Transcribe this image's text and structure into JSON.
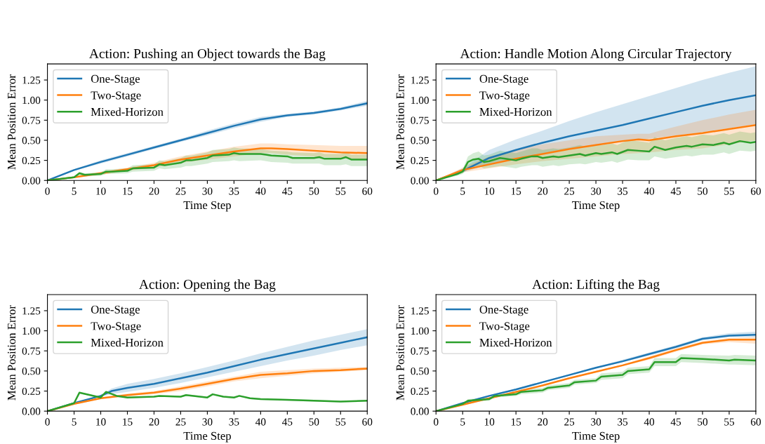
{
  "chart_data": [
    {
      "type": "line",
      "title": "Action: Pushing an Object towards the Bag",
      "xlabel": "Time Step",
      "ylabel": "Mean Position Error",
      "xlim": [
        0,
        60
      ],
      "ylim": [
        0,
        1.45
      ],
      "xticks": [
        0,
        5,
        10,
        15,
        20,
        25,
        30,
        35,
        40,
        45,
        50,
        55,
        60
      ],
      "yticks": [
        {
          "value": 0,
          "label": "0.00"
        },
        {
          "value": 0.25,
          "label": "0.25"
        },
        {
          "value": 0.5,
          "label": "0.50"
        },
        {
          "value": 0.75,
          "label": "0.75"
        },
        {
          "value": 1,
          "label": "1.00"
        },
        {
          "value": 1.25,
          "label": "1.25"
        }
      ],
      "legend": "top left",
      "grid": false,
      "series": [
        {
          "name": "One-Stage",
          "color": "#1f77b4",
          "x": [
            0,
            5,
            10,
            15,
            20,
            25,
            30,
            35,
            40,
            45,
            50,
            55,
            60
          ],
          "values": [
            0,
            0.13,
            0.23,
            0.32,
            0.41,
            0.5,
            0.59,
            0.68,
            0.76,
            0.81,
            0.84,
            0.89,
            0.96
          ],
          "lower": [
            0,
            0.12,
            0.21,
            0.3,
            0.39,
            0.48,
            0.56,
            0.65,
            0.73,
            0.79,
            0.82,
            0.87,
            0.93
          ],
          "upper": [
            0,
            0.14,
            0.25,
            0.34,
            0.43,
            0.52,
            0.62,
            0.71,
            0.79,
            0.83,
            0.86,
            0.91,
            0.99
          ]
        },
        {
          "name": "Two-Stage",
          "color": "#ff7f0e",
          "x": [
            0,
            5,
            10,
            15,
            20,
            25,
            30,
            35,
            40,
            42,
            45,
            50,
            55,
            60
          ],
          "values": [
            0,
            0.04,
            0.09,
            0.14,
            0.19,
            0.26,
            0.31,
            0.36,
            0.4,
            0.4,
            0.39,
            0.37,
            0.35,
            0.34
          ],
          "lower": [
            0,
            0.03,
            0.07,
            0.12,
            0.16,
            0.22,
            0.26,
            0.3,
            0.34,
            0.34,
            0.32,
            0.3,
            0.28,
            0.26
          ],
          "upper": [
            0,
            0.05,
            0.11,
            0.16,
            0.22,
            0.3,
            0.36,
            0.42,
            0.46,
            0.46,
            0.45,
            0.44,
            0.43,
            0.43
          ]
        },
        {
          "name": "Mixed-Horizon",
          "color": "#2ca02c",
          "x": [
            0,
            5,
            6,
            7,
            10,
            11,
            12,
            15,
            16,
            20,
            21,
            22,
            25,
            26,
            27,
            30,
            31,
            34,
            35,
            36,
            40,
            41,
            42,
            45,
            46,
            50,
            51,
            52,
            55,
            56,
            57,
            60
          ],
          "values": [
            0,
            0.04,
            0.09,
            0.07,
            0.08,
            0.11,
            0.11,
            0.12,
            0.15,
            0.16,
            0.2,
            0.19,
            0.22,
            0.25,
            0.25,
            0.28,
            0.31,
            0.32,
            0.34,
            0.33,
            0.33,
            0.32,
            0.31,
            0.3,
            0.28,
            0.28,
            0.29,
            0.27,
            0.27,
            0.29,
            0.26,
            0.26
          ],
          "lower": [
            0,
            0.03,
            0.07,
            0.05,
            0.06,
            0.08,
            0.08,
            0.09,
            0.11,
            0.12,
            0.15,
            0.14,
            0.16,
            0.18,
            0.18,
            0.21,
            0.23,
            0.24,
            0.25,
            0.24,
            0.25,
            0.24,
            0.23,
            0.22,
            0.21,
            0.21,
            0.21,
            0.19,
            0.19,
            0.2,
            0.18,
            0.18
          ],
          "upper": [
            0,
            0.05,
            0.11,
            0.09,
            0.1,
            0.14,
            0.14,
            0.15,
            0.19,
            0.2,
            0.25,
            0.24,
            0.28,
            0.31,
            0.31,
            0.35,
            0.38,
            0.39,
            0.41,
            0.4,
            0.39,
            0.38,
            0.37,
            0.36,
            0.35,
            0.34,
            0.35,
            0.33,
            0.33,
            0.35,
            0.32,
            0.32
          ]
        }
      ]
    },
    {
      "type": "line",
      "title": "Action: Handle Motion Along Circular Trajectory",
      "xlabel": "Time Step",
      "ylabel": "Mean Position Error",
      "xlim": [
        0,
        60
      ],
      "ylim": [
        0,
        1.45
      ],
      "xticks": [
        0,
        5,
        10,
        15,
        20,
        25,
        30,
        35,
        40,
        45,
        50,
        55,
        60
      ],
      "yticks": [
        {
          "value": 0,
          "label": "0.00"
        },
        {
          "value": 0.25,
          "label": "0.25"
        },
        {
          "value": 0.5,
          "label": "0.50"
        },
        {
          "value": 0.75,
          "label": "0.75"
        },
        {
          "value": 1,
          "label": "1.00"
        },
        {
          "value": 1.25,
          "label": "1.25"
        }
      ],
      "legend": "top left",
      "grid": false,
      "series": [
        {
          "name": "One-Stage",
          "color": "#1f77b4",
          "x": [
            0,
            5,
            10,
            15,
            20,
            25,
            30,
            35,
            40,
            45,
            50,
            55,
            60
          ],
          "values": [
            0,
            0.12,
            0.28,
            0.38,
            0.47,
            0.55,
            0.62,
            0.69,
            0.77,
            0.85,
            0.93,
            1.0,
            1.06
          ],
          "lower": [
            0,
            0.1,
            0.2,
            0.27,
            0.33,
            0.39,
            0.44,
            0.48,
            0.52,
            0.56,
            0.6,
            0.65,
            0.7
          ],
          "upper": [
            0,
            0.15,
            0.38,
            0.51,
            0.62,
            0.74,
            0.85,
            0.95,
            1.05,
            1.15,
            1.25,
            1.34,
            1.42
          ]
        },
        {
          "name": "Two-Stage",
          "color": "#ff7f0e",
          "x": [
            0,
            5,
            10,
            15,
            20,
            25,
            30,
            35,
            38,
            40,
            42,
            45,
            50,
            55,
            60
          ],
          "values": [
            0,
            0.13,
            0.2,
            0.27,
            0.33,
            0.39,
            0.44,
            0.49,
            0.51,
            0.5,
            0.52,
            0.55,
            0.59,
            0.64,
            0.69
          ],
          "lower": [
            0,
            0.1,
            0.15,
            0.2,
            0.24,
            0.27,
            0.3,
            0.33,
            0.34,
            0.35,
            0.36,
            0.38,
            0.4,
            0.45,
            0.5
          ],
          "upper": [
            0,
            0.16,
            0.3,
            0.38,
            0.45,
            0.5,
            0.55,
            0.57,
            0.58,
            0.58,
            0.62,
            0.67,
            0.75,
            0.82,
            0.88
          ]
        },
        {
          "name": "Mixed-Horizon",
          "color": "#2ca02c",
          "x": [
            0,
            4,
            5,
            6,
            7,
            8,
            9,
            10,
            12,
            13,
            15,
            16,
            18,
            19,
            20,
            22,
            23,
            25,
            27,
            28,
            30,
            31,
            33,
            34,
            36,
            38,
            40,
            41,
            43,
            45,
            47,
            48,
            50,
            52,
            54,
            55,
            57,
            59,
            60
          ],
          "values": [
            0,
            0.08,
            0.11,
            0.23,
            0.26,
            0.27,
            0.23,
            0.24,
            0.28,
            0.27,
            0.25,
            0.27,
            0.3,
            0.3,
            0.28,
            0.3,
            0.29,
            0.31,
            0.33,
            0.31,
            0.34,
            0.33,
            0.35,
            0.33,
            0.38,
            0.37,
            0.36,
            0.42,
            0.38,
            0.41,
            0.43,
            0.42,
            0.45,
            0.44,
            0.47,
            0.45,
            0.49,
            0.47,
            0.48
          ],
          "lower": [
            0,
            0.06,
            0.08,
            0.15,
            0.17,
            0.18,
            0.15,
            0.16,
            0.18,
            0.17,
            0.15,
            0.17,
            0.19,
            0.19,
            0.17,
            0.19,
            0.18,
            0.2,
            0.21,
            0.2,
            0.23,
            0.22,
            0.24,
            0.22,
            0.26,
            0.25,
            0.25,
            0.3,
            0.27,
            0.29,
            0.31,
            0.3,
            0.32,
            0.32,
            0.35,
            0.33,
            0.37,
            0.36,
            0.37
          ],
          "upper": [
            0,
            0.1,
            0.14,
            0.3,
            0.34,
            0.36,
            0.31,
            0.32,
            0.37,
            0.36,
            0.34,
            0.36,
            0.4,
            0.4,
            0.38,
            0.4,
            0.39,
            0.41,
            0.44,
            0.42,
            0.45,
            0.44,
            0.46,
            0.44,
            0.5,
            0.49,
            0.47,
            0.54,
            0.5,
            0.53,
            0.55,
            0.54,
            0.57,
            0.56,
            0.59,
            0.57,
            0.61,
            0.59,
            0.6
          ]
        }
      ]
    },
    {
      "type": "line",
      "title": "Action: Opening the Bag",
      "xlabel": "Time Step",
      "ylabel": "Mean Position Error",
      "xlim": [
        0,
        60
      ],
      "ylim": [
        0,
        1.45
      ],
      "xticks": [
        0,
        5,
        10,
        15,
        20,
        25,
        30,
        35,
        40,
        45,
        50,
        55,
        60
      ],
      "yticks": [
        {
          "value": 0,
          "label": "0.00"
        },
        {
          "value": 0.25,
          "label": "0.25"
        },
        {
          "value": 0.5,
          "label": "0.50"
        },
        {
          "value": 0.75,
          "label": "0.75"
        },
        {
          "value": 1,
          "label": "1.00"
        },
        {
          "value": 1.25,
          "label": "1.25"
        }
      ],
      "legend": "top left",
      "grid": false,
      "series": [
        {
          "name": "One-Stage",
          "color": "#1f77b4",
          "x": [
            0,
            5,
            10,
            12,
            15,
            20,
            25,
            30,
            35,
            40,
            45,
            50,
            55,
            60
          ],
          "values": [
            0,
            0.1,
            0.19,
            0.25,
            0.29,
            0.34,
            0.41,
            0.48,
            0.56,
            0.64,
            0.71,
            0.78,
            0.85,
            0.92
          ],
          "lower": [
            0,
            0.1,
            0.18,
            0.21,
            0.24,
            0.29,
            0.35,
            0.42,
            0.49,
            0.56,
            0.63,
            0.69,
            0.76,
            0.82
          ],
          "upper": [
            0,
            0.1,
            0.2,
            0.28,
            0.34,
            0.4,
            0.47,
            0.55,
            0.63,
            0.72,
            0.8,
            0.88,
            0.95,
            1.02
          ]
        },
        {
          "name": "Two-Stage",
          "color": "#ff7f0e",
          "x": [
            0,
            5,
            10,
            15,
            20,
            25,
            30,
            35,
            40,
            45,
            50,
            55,
            60
          ],
          "values": [
            0,
            0.09,
            0.16,
            0.2,
            0.23,
            0.28,
            0.34,
            0.4,
            0.45,
            0.47,
            0.5,
            0.51,
            0.53
          ],
          "lower": [
            0,
            0.08,
            0.15,
            0.18,
            0.21,
            0.25,
            0.31,
            0.37,
            0.41,
            0.44,
            0.47,
            0.49,
            0.51
          ],
          "upper": [
            0,
            0.1,
            0.17,
            0.22,
            0.25,
            0.31,
            0.37,
            0.43,
            0.49,
            0.51,
            0.53,
            0.54,
            0.55
          ]
        },
        {
          "name": "Mixed-Horizon",
          "color": "#2ca02c",
          "x": [
            0,
            5,
            6,
            10,
            11,
            13,
            15,
            20,
            21,
            25,
            26,
            30,
            31,
            33,
            35,
            36,
            38,
            40,
            45,
            50,
            55,
            60
          ],
          "values": [
            0,
            0.1,
            0.23,
            0.17,
            0.24,
            0.19,
            0.17,
            0.18,
            0.19,
            0.18,
            0.2,
            0.17,
            0.21,
            0.18,
            0.17,
            0.19,
            0.16,
            0.15,
            0.14,
            0.13,
            0.12,
            0.13
          ],
          "lower": [
            0,
            0.09,
            0.22,
            0.16,
            0.23,
            0.18,
            0.16,
            0.17,
            0.18,
            0.17,
            0.19,
            0.16,
            0.2,
            0.17,
            0.16,
            0.18,
            0.15,
            0.14,
            0.13,
            0.12,
            0.11,
            0.12
          ],
          "upper": [
            0,
            0.11,
            0.24,
            0.18,
            0.25,
            0.2,
            0.18,
            0.19,
            0.2,
            0.19,
            0.21,
            0.18,
            0.22,
            0.19,
            0.18,
            0.2,
            0.17,
            0.16,
            0.15,
            0.14,
            0.13,
            0.14
          ]
        }
      ]
    },
    {
      "type": "line",
      "title": "Action: Lifting the Bag",
      "xlabel": "Time Step",
      "ylabel": "Mean Position Error",
      "xlim": [
        0,
        60
      ],
      "ylim": [
        0,
        1.45
      ],
      "xticks": [
        0,
        5,
        10,
        15,
        20,
        25,
        30,
        35,
        40,
        45,
        50,
        55,
        60
      ],
      "yticks": [
        {
          "value": 0,
          "label": "0.00"
        },
        {
          "value": 0.25,
          "label": "0.25"
        },
        {
          "value": 0.5,
          "label": "0.50"
        },
        {
          "value": 0.75,
          "label": "0.75"
        },
        {
          "value": 1,
          "label": "1.00"
        },
        {
          "value": 1.25,
          "label": "1.25"
        }
      ],
      "legend": "top left",
      "grid": false,
      "series": [
        {
          "name": "One-Stage",
          "color": "#1f77b4",
          "x": [
            0,
            5,
            10,
            15,
            20,
            25,
            30,
            35,
            40,
            45,
            50,
            55,
            60
          ],
          "values": [
            0,
            0.1,
            0.19,
            0.27,
            0.36,
            0.45,
            0.54,
            0.62,
            0.71,
            0.8,
            0.9,
            0.94,
            0.95
          ],
          "lower": [
            0,
            0.09,
            0.18,
            0.26,
            0.35,
            0.44,
            0.53,
            0.61,
            0.69,
            0.78,
            0.88,
            0.92,
            0.92
          ],
          "upper": [
            0,
            0.11,
            0.2,
            0.28,
            0.37,
            0.46,
            0.55,
            0.64,
            0.73,
            0.82,
            0.92,
            0.97,
            0.99
          ]
        },
        {
          "name": "Two-Stage",
          "color": "#ff7f0e",
          "x": [
            0,
            5,
            10,
            15,
            20,
            25,
            30,
            35,
            40,
            45,
            50,
            55,
            60
          ],
          "values": [
            0,
            0.08,
            0.16,
            0.24,
            0.32,
            0.41,
            0.49,
            0.57,
            0.66,
            0.76,
            0.85,
            0.89,
            0.89
          ],
          "lower": [
            0,
            0.07,
            0.15,
            0.23,
            0.31,
            0.4,
            0.48,
            0.56,
            0.64,
            0.74,
            0.83,
            0.86,
            0.84
          ],
          "upper": [
            0,
            0.09,
            0.17,
            0.25,
            0.33,
            0.42,
            0.5,
            0.58,
            0.68,
            0.78,
            0.87,
            0.91,
            0.92
          ]
        },
        {
          "name": "Mixed-Horizon",
          "color": "#2ca02c",
          "x": [
            0,
            5,
            6,
            10,
            11,
            15,
            16,
            20,
            21,
            25,
            26,
            30,
            31,
            35,
            36,
            40,
            41,
            45,
            46,
            50,
            55,
            56,
            60
          ],
          "values": [
            0,
            0.09,
            0.13,
            0.15,
            0.19,
            0.21,
            0.24,
            0.26,
            0.29,
            0.32,
            0.36,
            0.38,
            0.43,
            0.45,
            0.5,
            0.52,
            0.61,
            0.61,
            0.66,
            0.65,
            0.63,
            0.64,
            0.63
          ],
          "lower": [
            0,
            0.08,
            0.11,
            0.13,
            0.17,
            0.19,
            0.21,
            0.23,
            0.26,
            0.29,
            0.33,
            0.35,
            0.39,
            0.41,
            0.46,
            0.48,
            0.56,
            0.56,
            0.61,
            0.6,
            0.58,
            0.58,
            0.57
          ],
          "upper": [
            0,
            0.1,
            0.15,
            0.17,
            0.21,
            0.23,
            0.27,
            0.29,
            0.32,
            0.35,
            0.39,
            0.41,
            0.47,
            0.49,
            0.54,
            0.56,
            0.66,
            0.66,
            0.71,
            0.7,
            0.69,
            0.7,
            0.69
          ]
        }
      ]
    }
  ]
}
